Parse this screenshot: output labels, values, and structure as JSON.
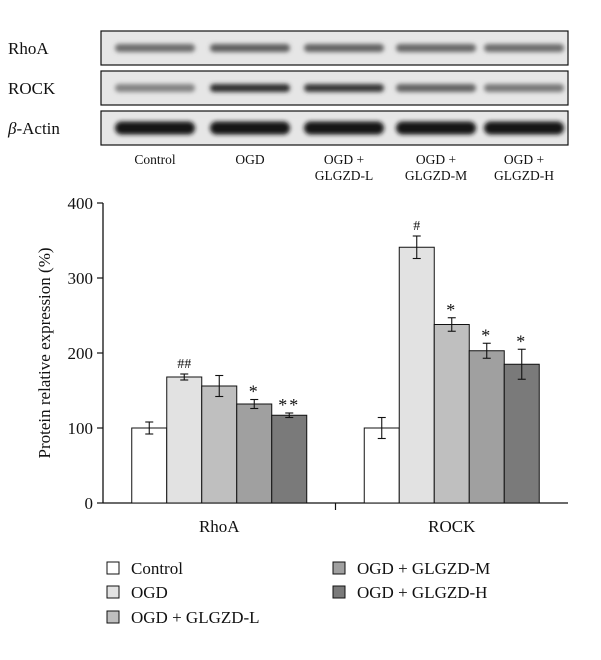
{
  "blot": {
    "rows": [
      {
        "label_prefix": "",
        "label": "RhoA"
      },
      {
        "label_prefix": "",
        "label": "ROCK"
      },
      {
        "label_prefix": "β",
        "label": "-Actin"
      }
    ],
    "lane_labels": [
      [
        "Control"
      ],
      [
        "OGD"
      ],
      [
        "OGD +",
        "GLGZD-L"
      ],
      [
        "OGD +",
        "GLGZD-M"
      ],
      [
        "OGD +",
        "GLGZD-H"
      ]
    ],
    "band_intensity": [
      [
        0.55,
        0.62,
        0.6,
        0.58,
        0.55
      ],
      [
        0.45,
        0.85,
        0.8,
        0.6,
        0.5
      ],
      [
        0.98,
        0.98,
        0.98,
        0.97,
        0.98
      ]
    ]
  },
  "chart_data": {
    "type": "bar",
    "title": "",
    "xlabel": "",
    "ylabel": "Protein relative expression (%)",
    "ylim": [
      0,
      400
    ],
    "yticks": [
      0,
      100,
      200,
      300,
      400
    ],
    "categories": [
      "RhoA",
      "ROCK"
    ],
    "series": [
      {
        "name": "Control",
        "color": "#ffffff",
        "values": [
          100,
          100
        ],
        "errors": [
          8,
          14
        ],
        "annotations": [
          "",
          ""
        ]
      },
      {
        "name": "OGD",
        "color": "#e2e2e2",
        "values": [
          168,
          341
        ],
        "errors": [
          4,
          15
        ],
        "annotations": [
          "##",
          "#"
        ]
      },
      {
        "name": "OGD + GLGZD-L",
        "color": "#bfbfbf",
        "values": [
          156,
          238
        ],
        "errors": [
          14,
          9
        ],
        "annotations": [
          "",
          "*"
        ]
      },
      {
        "name": "OGD + GLGZD-M",
        "color": "#a0a0a0",
        "values": [
          132,
          203
        ],
        "errors": [
          6,
          10
        ],
        "annotations": [
          "*",
          "*"
        ]
      },
      {
        "name": "OGD + GLGZD-H",
        "color": "#7a7a7a",
        "values": [
          117,
          185
        ],
        "errors": [
          3,
          20
        ],
        "annotations": [
          "**",
          "*"
        ]
      }
    ],
    "legend_position": "bottom"
  }
}
